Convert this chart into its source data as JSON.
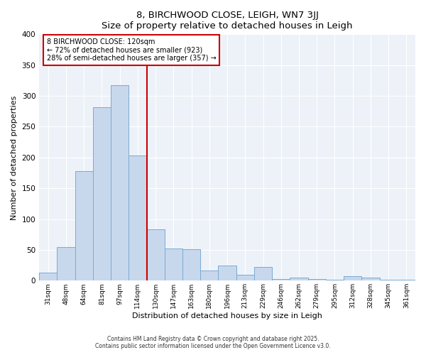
{
  "title": "8, BIRCHWOOD CLOSE, LEIGH, WN7 3JJ",
  "subtitle": "Size of property relative to detached houses in Leigh",
  "xlabel": "Distribution of detached houses by size in Leigh",
  "ylabel": "Number of detached properties",
  "bar_labels": [
    "31sqm",
    "48sqm",
    "64sqm",
    "81sqm",
    "97sqm",
    "114sqm",
    "130sqm",
    "147sqm",
    "163sqm",
    "180sqm",
    "196sqm",
    "213sqm",
    "229sqm",
    "246sqm",
    "262sqm",
    "279sqm",
    "295sqm",
    "312sqm",
    "328sqm",
    "345sqm",
    "361sqm"
  ],
  "bar_values": [
    13,
    54,
    178,
    282,
    317,
    203,
    83,
    52,
    51,
    16,
    25,
    9,
    22,
    3,
    5,
    3,
    1,
    7,
    5,
    2,
    2
  ],
  "bar_color": "#c8d8ec",
  "bar_edge_color": "#7aaad4",
  "vline_color": "#cc0000",
  "annotation_line1": "8 BIRCHWOOD CLOSE: 120sqm",
  "annotation_line2": "← 72% of detached houses are smaller (923)",
  "annotation_line3": "28% of semi-detached houses are larger (357) →",
  "annotation_box_color": "#ffffff",
  "annotation_box_edge": "#cc0000",
  "ylim": [
    0,
    400
  ],
  "yticks": [
    0,
    50,
    100,
    150,
    200,
    250,
    300,
    350,
    400
  ],
  "bg_color": "#edf2f9",
  "grid_color": "#ffffff",
  "footer1": "Contains HM Land Registry data © Crown copyright and database right 2025.",
  "footer2": "Contains public sector information licensed under the Open Government Licence v3.0."
}
